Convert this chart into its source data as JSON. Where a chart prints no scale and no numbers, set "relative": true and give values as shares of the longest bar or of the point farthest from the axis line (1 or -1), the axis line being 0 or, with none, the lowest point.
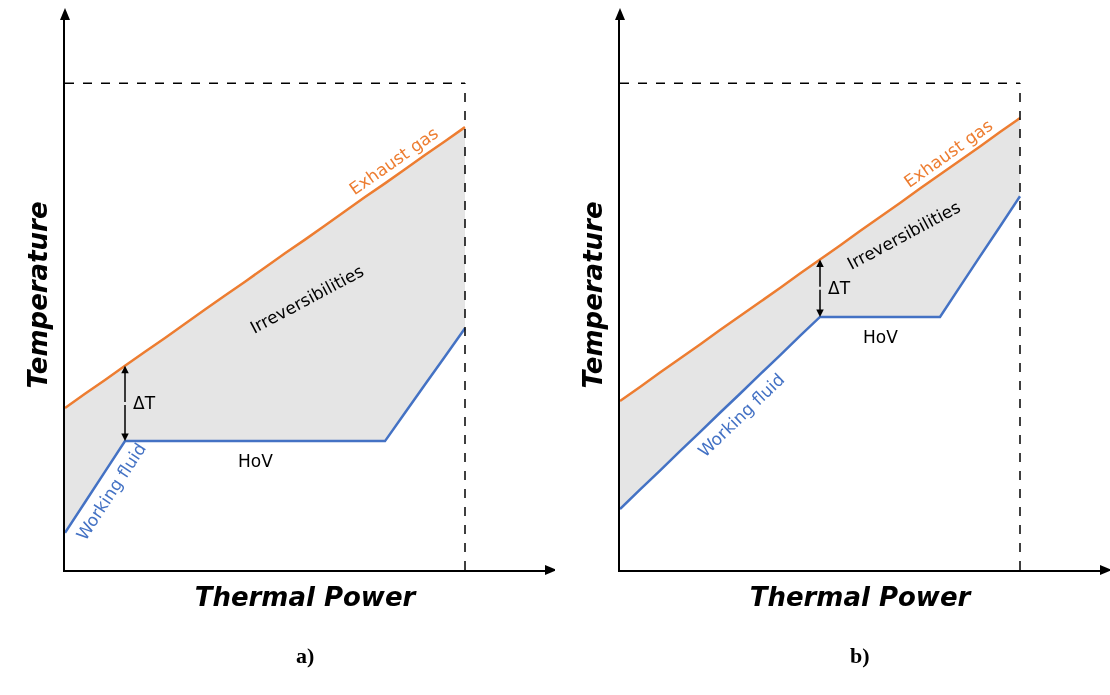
{
  "chart_data": [
    {
      "type": "line",
      "relative": true,
      "title": "a)",
      "xlabel": "Thermal Power",
      "ylabel": "Temperature",
      "legend": false,
      "categories": [
        null,
        null,
        null,
        null,
        null,
        null,
        null,
        null,
        null,
        null,
        null,
        null,
        null,
        null,
        null,
        null,
        null,
        null,
        null,
        null,
        null
      ],
      "series": [
        {
          "name": "Exhaust gas",
          "type": "area",
          "color": "#ed7d31",
          "values": [
            0.366,
            0.398,
            0.429,
            0.461,
            0.493,
            0.524,
            0.556,
            0.588,
            0.62,
            0.651,
            0.683,
            0.715,
            0.746,
            0.778,
            0.81,
            0.842,
            0.873,
            0.905,
            0.937,
            0.968,
            1
          ]
        },
        {
          "name": "Working fluid",
          "color": "#4472c4",
          "values": [
            0.084,
            0.153,
            0.222,
            0.291,
            0.291,
            0.291,
            0.291,
            0.291,
            0.291,
            0.291,
            0.291,
            0.291,
            0.291,
            0.291,
            0.291,
            0.291,
            0.291,
            0.355,
            0.419,
            0.482,
            0.546
          ]
        }
      ],
      "ref_lines": [
        {
          "axis": "y",
          "value": 1.099,
          "line_style": "dashed",
          "color": "#000000"
        }
      ],
      "annotations": [
        "ΔT",
        "Irreversibilities",
        "HoV"
      ]
    },
    {
      "type": "line",
      "relative": true,
      "title": "b)",
      "xlabel": "Thermal Power",
      "ylabel": "Temperature",
      "legend": false,
      "categories": [
        null,
        null,
        null,
        null,
        null,
        null,
        null,
        null,
        null,
        null,
        null,
        null,
        null,
        null,
        null,
        null,
        null,
        null,
        null,
        null,
        null
      ],
      "series": [
        {
          "name": "Exhaust gas",
          "type": "area",
          "color": "#ed7d31",
          "values": [
            0.374,
            0.405,
            0.437,
            0.468,
            0.499,
            0.531,
            0.562,
            0.593,
            0.624,
            0.656,
            0.687,
            0.718,
            0.75,
            0.781,
            0.812,
            0.844,
            0.875,
            0.906,
            0.937,
            0.969,
            1
          ]
        },
        {
          "name": "Working fluid",
          "color": "#4472c4",
          "values": [
            0.135,
            0.178,
            0.22,
            0.263,
            0.305,
            0.348,
            0.39,
            0.433,
            0.475,
            0.518,
            0.56,
            0.56,
            0.56,
            0.56,
            0.56,
            0.56,
            0.56,
            0.627,
            0.694,
            0.76,
            0.827
          ]
        }
      ],
      "ref_lines": [
        {
          "axis": "y",
          "value": 1.077,
          "line_style": "dashed",
          "color": "#000000"
        }
      ],
      "annotations": [
        "ΔT",
        "Irreversibilities",
        "HoV"
      ]
    }
  ]
}
